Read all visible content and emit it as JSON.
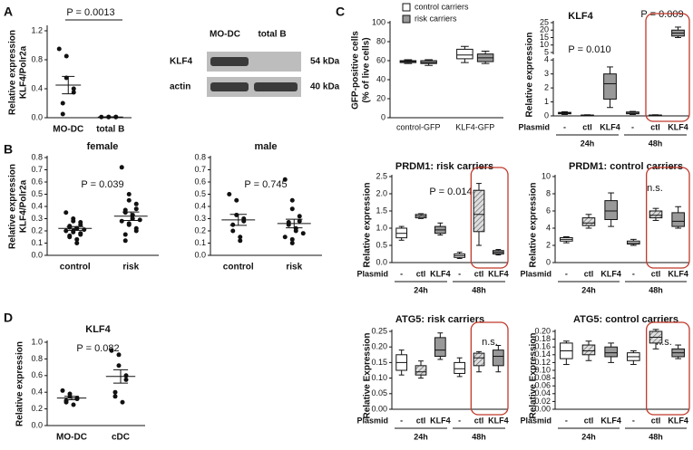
{
  "panel_labels": [
    "A",
    "B",
    "C",
    "D"
  ],
  "chart_data": [
    {
      "type": "dot",
      "y_label": [
        "Relative expression",
        "KLF4/Polr2a"
      ],
      "annotations": [
        "P = 0.0013"
      ],
      "categories": [
        "MO-DC",
        "total B"
      ],
      "values": [
        [
          0.95,
          0.85,
          0.55,
          0.4,
          0.35,
          0.2,
          0.05
        ],
        [
          0.01,
          0.01,
          0.01,
          0.01,
          0.01
        ]
      ],
      "mean": [
        0.45,
        0.01
      ],
      "sem": [
        0.12,
        0.002
      ],
      "ylim": [
        0,
        1.25
      ],
      "yticks": [
        {
          "value": 0,
          "label": "0.0"
        },
        {
          "value": 0.4,
          "label": "0.4"
        },
        {
          "value": 0.8,
          "label": "0.8"
        },
        {
          "value": 1.2,
          "label": "1.2"
        }
      ]
    },
    {
      "type": "blot",
      "lanes": [
        "MO-DC",
        "total B"
      ],
      "rows": [
        "KLF4",
        "actin"
      ],
      "sizes": [
        "54 kDa",
        "40 kDa"
      ]
    },
    {
      "type": "dot",
      "title": "female",
      "y_label": [
        "Relative expression",
        "KLF4/Polr2a"
      ],
      "annotations": [
        "P = 0.039"
      ],
      "categories": [
        "control",
        "risk"
      ],
      "values": [
        [
          0.35,
          0.3,
          0.28,
          0.27,
          0.25,
          0.24,
          0.23,
          0.22,
          0.22,
          0.21,
          0.2,
          0.2,
          0.19,
          0.18,
          0.17,
          0.16,
          0.15,
          0.13,
          0.1
        ],
        [
          0.72,
          0.5,
          0.45,
          0.42,
          0.38,
          0.37,
          0.35,
          0.33,
          0.3,
          0.29,
          0.28,
          0.26,
          0.25,
          0.22,
          0.2,
          0.17,
          0.12
        ]
      ],
      "mean": [
        0.22,
        0.32
      ],
      "sem": [
        0.015,
        0.035
      ],
      "ylim": [
        0,
        0.8
      ],
      "yticks": [
        {
          "value": 0,
          "label": "0.0"
        },
        0.1,
        0.2,
        0.3,
        0.4,
        0.5,
        0.6,
        0.7,
        0.8
      ]
    },
    {
      "type": "dot",
      "title": "male",
      "annotations": [
        "P = 0.745"
      ],
      "categories": [
        "control",
        "risk"
      ],
      "values": [
        [
          0.5,
          0.45,
          0.33,
          0.3,
          0.28,
          0.25,
          0.2,
          0.15,
          0.12
        ],
        [
          0.62,
          0.45,
          0.38,
          0.32,
          0.28,
          0.27,
          0.25,
          0.22,
          0.2,
          0.18,
          0.15,
          0.13,
          0.1
        ]
      ],
      "mean": [
        0.29,
        0.26
      ],
      "sem": [
        0.045,
        0.035
      ],
      "ylim": [
        0,
        0.8
      ],
      "yticks": [
        {
          "value": 0,
          "label": "0.0"
        },
        0.1,
        0.2,
        0.3,
        0.4,
        0.5,
        0.6,
        0.7,
        0.8
      ]
    },
    {
      "type": "dot",
      "title": "KLF4",
      "y_label": [
        "Relative expression"
      ],
      "annotations": [
        "P = 0.082"
      ],
      "categories": [
        "MO-DC",
        "cDC"
      ],
      "values": [
        [
          0.42,
          0.38,
          0.35,
          0.33,
          0.32,
          0.3,
          0.28,
          0.25
        ],
        [
          0.9,
          0.85,
          0.72,
          0.6,
          0.55,
          0.4,
          0.35,
          0.28
        ]
      ],
      "mean": [
        0.33,
        0.59
      ],
      "sem": [
        0.02,
        0.08
      ],
      "ylim": [
        0,
        1
      ],
      "yticks": [
        {
          "value": 0,
          "label": "0.0"
        },
        0.2,
        0.4,
        0.6,
        0.8,
        {
          "value": 1,
          "label": "1.0"
        }
      ]
    },
    {
      "type": "box",
      "y_label": [
        "GFP-positive cells",
        "(% of live cells)"
      ],
      "categories": [
        "control-GFP",
        "KLF4-GFP"
      ],
      "series": [
        {
          "name": "control carriers",
          "color": "#ffffff",
          "boxes": [
            [
              57,
              58,
              59,
              60,
              61
            ],
            [
              58,
              62,
              66,
              72,
              75
            ]
          ]
        },
        {
          "name": "risk carriers",
          "color": "#999999",
          "boxes": [
            [
              55,
              57,
              58,
              60,
              61
            ],
            [
              57,
              59,
              63,
              67,
              70
            ]
          ]
        }
      ],
      "ylim": [
        0,
        100
      ],
      "yticks": [
        0,
        20,
        40,
        60,
        80,
        100
      ]
    },
    {
      "type": "box",
      "title": "KLF4",
      "y_label": [
        "Relative expression"
      ],
      "annotations": [
        "P = 0.010",
        "P = 0.009"
      ],
      "x_label": "Plasmid",
      "categories": [
        "-",
        "ctl",
        "KLF4",
        "-",
        "ctl",
        "KLF4"
      ],
      "groups": [
        "24h",
        "48h"
      ],
      "fills": [
        "#ffffff",
        "hatch",
        "#999999",
        "#ffffff",
        "hatch",
        "#999999"
      ],
      "boxes": [
        [
          0.1,
          0.15,
          0.2,
          0.25,
          0.3
        ],
        [
          0.02,
          0.04,
          0.05,
          0.06,
          0.08
        ],
        [
          0.6,
          1.2,
          2.3,
          3,
          3.5
        ],
        [
          0.1,
          0.15,
          0.2,
          0.28,
          0.32
        ],
        [
          0.02,
          0.04,
          0.05,
          0.06,
          0.08
        ],
        [
          15,
          16,
          18,
          20,
          22
        ]
      ],
      "ylim": [
        0,
        25
      ],
      "axis_break": [
        4,
        5
      ],
      "yticks": [
        0,
        1,
        2,
        3,
        4,
        5,
        10,
        15,
        20,
        25
      ]
    },
    {
      "type": "box",
      "title": "PRDM1: risk carriers",
      "y_label": [
        "Relative expression"
      ],
      "annotations": [
        "P = 0.014"
      ],
      "x_label": "Plasmid",
      "categories": [
        "-",
        "ctl",
        "KLF4",
        "-",
        "ctl",
        "KLF4"
      ],
      "groups": [
        "24h",
        "48h"
      ],
      "fills": [
        "#ffffff",
        "hatch",
        "#999999",
        "#ffffff",
        "hatch",
        "#999999"
      ],
      "boxes": [
        [
          0.65,
          0.72,
          0.85,
          1.0,
          1.05
        ],
        [
          1.28,
          1.3,
          1.35,
          1.4,
          1.42
        ],
        [
          0.8,
          0.85,
          0.95,
          1.05,
          1.15
        ],
        [
          0.12,
          0.15,
          0.2,
          0.25,
          0.3
        ],
        [
          0.5,
          0.9,
          1.4,
          2.1,
          2.3
        ],
        [
          0.22,
          0.25,
          0.3,
          0.35,
          0.38
        ]
      ],
      "ylim": [
        0,
        2.5
      ],
      "yticks": [
        {
          "value": 0,
          "label": "0.0"
        },
        0.5,
        {
          "value": 1,
          "label": "1.0"
        },
        1.5,
        {
          "value": 2,
          "label": "2.0"
        },
        2.5
      ]
    },
    {
      "type": "box",
      "title": "PRDM1: control carriers",
      "y_label": [
        "Relative expression"
      ],
      "annotations": [
        "n.s."
      ],
      "x_label": "Plasmid",
      "categories": [
        "-",
        "ctl",
        "KLF4",
        "-",
        "ctl",
        "KLF4"
      ],
      "groups": [
        "24h",
        "48h"
      ],
      "fills": [
        "#ffffff",
        "hatch",
        "#999999",
        "#ffffff",
        "hatch",
        "#999999"
      ],
      "boxes": [
        [
          2.3,
          2.5,
          2.7,
          2.9,
          3.0
        ],
        [
          4.0,
          4.3,
          4.6,
          5.2,
          5.6
        ],
        [
          4.2,
          5.0,
          6.0,
          7.2,
          8.1
        ],
        [
          2.0,
          2.15,
          2.3,
          2.5,
          2.7
        ],
        [
          4.9,
          5.2,
          5.5,
          6.0,
          6.3
        ],
        [
          4.0,
          4.2,
          4.8,
          5.8,
          6.5
        ]
      ],
      "ylim": [
        0,
        10
      ],
      "yticks": [
        0,
        2,
        4,
        6,
        8,
        10
      ]
    },
    {
      "type": "box",
      "title": "ATG5: risk carriers",
      "y_label": [
        "Relative Expression"
      ],
      "annotations": [
        "n.s."
      ],
      "x_label": "Plasmid",
      "categories": [
        "-",
        "ctl",
        "KLF4",
        "-",
        "ctl",
        "KLF4"
      ],
      "groups": [
        "24h",
        "48h"
      ],
      "fills": [
        "#ffffff",
        "hatch",
        "#999999",
        "#ffffff",
        "hatch",
        "#999999"
      ],
      "boxes": [
        [
          0.11,
          0.125,
          0.15,
          0.175,
          0.19
        ],
        [
          0.1,
          0.11,
          0.12,
          0.14,
          0.155
        ],
        [
          0.16,
          0.17,
          0.19,
          0.23,
          0.245
        ],
        [
          0.105,
          0.115,
          0.13,
          0.15,
          0.165
        ],
        [
          0.12,
          0.14,
          0.165,
          0.18,
          0.185
        ],
        [
          0.12,
          0.14,
          0.17,
          0.19,
          0.205
        ]
      ],
      "ylim": [
        0,
        0.25
      ],
      "yticks": [
        {
          "value": 0,
          "label": "0.00"
        },
        0.05,
        {
          "value": 0.1,
          "label": "0.10"
        },
        0.15,
        {
          "value": 0.2,
          "label": "0.20"
        },
        0.25
      ]
    },
    {
      "type": "box",
      "title": "ATG5: control carriers",
      "y_label": [
        "Relative Expression"
      ],
      "annotations": [
        "n.s."
      ],
      "x_label": "Plasmid",
      "categories": [
        "-",
        "ctl",
        "KLF4",
        "-",
        "ctl",
        "KLF4"
      ],
      "groups": [
        "24h",
        "48h"
      ],
      "fills": [
        "#ffffff",
        "hatch",
        "#999999",
        "#ffffff",
        "hatch",
        "#999999"
      ],
      "boxes": [
        [
          0.115,
          0.13,
          0.15,
          0.17,
          0.175
        ],
        [
          0.125,
          0.14,
          0.15,
          0.165,
          0.175
        ],
        [
          0.12,
          0.135,
          0.145,
          0.16,
          0.17
        ],
        [
          0.115,
          0.125,
          0.135,
          0.145,
          0.15
        ],
        [
          0.155,
          0.17,
          0.185,
          0.2,
          0.205
        ],
        [
          0.13,
          0.135,
          0.145,
          0.155,
          0.165
        ]
      ],
      "ylim": [
        0,
        0.2
      ],
      "yticks": [
        {
          "value": 0,
          "label": "0.00"
        },
        0.02,
        0.04,
        0.06,
        0.08,
        {
          "value": 0.1,
          "label": "0.10"
        },
        0.12,
        0.14,
        0.16,
        0.18,
        {
          "value": 0.2,
          "label": "0.20"
        }
      ]
    }
  ]
}
